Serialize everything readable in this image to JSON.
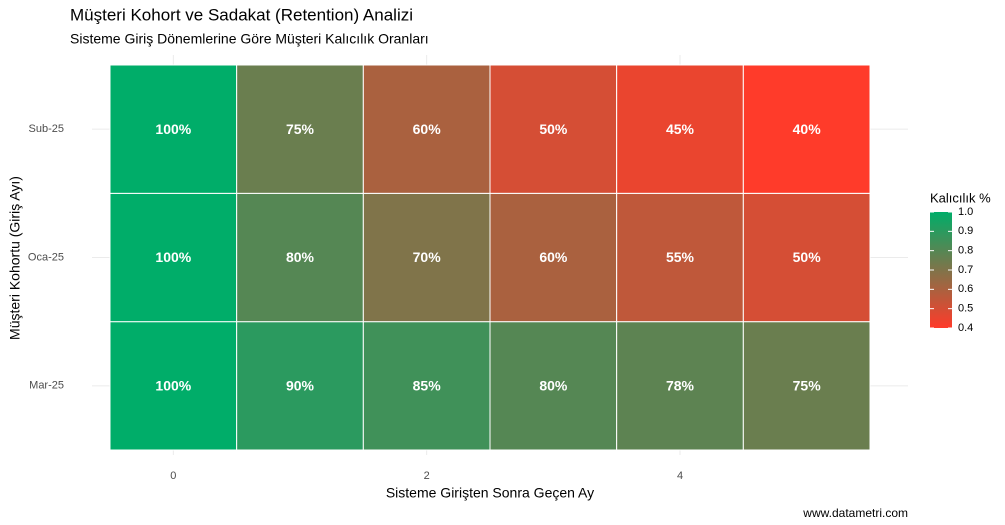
{
  "chart_data": {
    "type": "heatmap",
    "title": "Müşteri Kohort ve Sadakat (Retention) Analizi",
    "subtitle": "Sisteme Giriş Dönemlerine Göre Müşteri Kalıcılık Oranları",
    "x_label": "Sisteme Girişten Sonra Geçen Ay",
    "y_label": "Müşteri Kohortu (Giriş Ayı)",
    "caption": "www.datametri.com",
    "x": [
      0,
      1,
      2,
      3,
      4,
      5
    ],
    "xlim": [
      -0.8,
      5.8
    ],
    "xticks": [
      0,
      2,
      4
    ],
    "categories": [
      "Mar-25",
      "Oca-25",
      "Sub-25"
    ],
    "values": [
      [
        1.0,
        0.9,
        0.85,
        0.8,
        0.78,
        0.75
      ],
      [
        1.0,
        0.8,
        0.7,
        0.6,
        0.55,
        0.5
      ],
      [
        1.0,
        0.75,
        0.6,
        0.5,
        0.45,
        0.4
      ]
    ],
    "value_labels": [
      [
        "100%",
        "90%",
        "85%",
        "80%",
        "78%",
        "75%"
      ],
      [
        "100%",
        "80%",
        "70%",
        "60%",
        "55%",
        "50%"
      ],
      [
        "100%",
        "75%",
        "60%",
        "50%",
        "45%",
        "40%"
      ]
    ],
    "legend_title": "Kalıcılık %",
    "color_low": "#ff3b2a",
    "color_high": "#00ad69",
    "color_lim": [
      0.4,
      1.0
    ],
    "color_ticks": [
      {
        "value": 1,
        "label": "1.0"
      },
      0.9,
      0.8,
      0.7,
      0.6,
      0.5,
      0.4
    ],
    "grid": true
  }
}
